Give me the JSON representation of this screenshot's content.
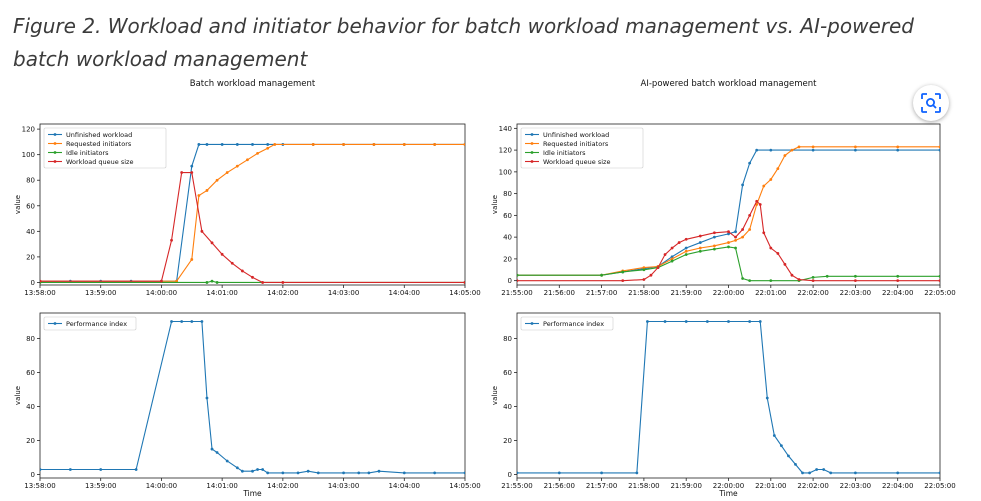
{
  "figure": {
    "title": "Figure 2. Workload and initiator behavior for batch workload management vs. AI-powered batch workload management"
  },
  "overlay": {
    "scan_icon": "visual-search-icon"
  },
  "chart_data": [
    {
      "type": "line",
      "title": "Batch workload management",
      "ylabel": "value",
      "xlabel": "",
      "ylim": [
        -2,
        124
      ],
      "yticks": [
        0,
        20,
        40,
        60,
        80,
        100,
        120
      ],
      "x": [
        "13:58:00",
        "13:58:05",
        "13:58:10",
        "13:58:15",
        "13:58:20",
        "13:58:25",
        "13:58:30",
        "13:58:35",
        "13:58:40",
        "13:58:45",
        "13:58:50",
        "13:58:55",
        "13:59:00",
        "13:59:05",
        "13:59:10",
        "13:59:15",
        "13:59:20",
        "13:59:25",
        "13:59:30",
        "13:59:35",
        "13:59:40",
        "13:59:45",
        "13:59:50",
        "13:59:55",
        "14:00:00",
        "14:00:05",
        "14:00:10",
        "14:00:15",
        "14:00:20",
        "14:00:25",
        "14:00:30",
        "14:00:35",
        "14:00:40",
        "14:00:45",
        "14:00:50",
        "14:00:55",
        "14:01:00",
        "14:01:05",
        "14:01:10",
        "14:01:15",
        "14:01:20",
        "14:01:25",
        "14:01:30",
        "14:01:35",
        "14:01:40",
        "14:01:45",
        "14:01:50",
        "14:01:55",
        "14:02:00",
        "14:02:05",
        "14:02:10",
        "14:02:15",
        "14:02:20",
        "14:02:25",
        "14:02:30",
        "14:02:35",
        "14:02:40",
        "14:02:45",
        "14:02:50",
        "14:02:55",
        "14:03:00",
        "14:03:05",
        "14:03:10",
        "14:03:15",
        "14:03:20",
        "14:03:25",
        "14:03:30",
        "14:03:35",
        "14:03:40",
        "14:03:45",
        "14:03:50",
        "14:03:55",
        "14:04:00",
        "14:04:05",
        "14:04:10",
        "14:04:15",
        "14:04:20",
        "14:04:25",
        "14:04:30",
        "14:04:35",
        "14:04:40",
        "14:04:45",
        "14:04:50",
        "14:04:55",
        "14:05:00"
      ],
      "xticks": [
        "13:58:00",
        "13:59:00",
        "14:00:00",
        "14:01:00",
        "14:02:00",
        "14:03:00",
        "14:04:00",
        "14:05:00"
      ],
      "series": [
        {
          "name": "Unfinished workload",
          "color": "#1f77b4",
          "points": [
            [
              "13:58:00",
              1
            ],
            [
              "13:58:30",
              1
            ],
            [
              "13:59:00",
              1
            ],
            [
              "13:59:30",
              1
            ],
            [
              "14:00:00",
              1
            ],
            [
              "14:00:15",
              1
            ],
            [
              "14:00:30",
              91
            ],
            [
              "14:00:37",
              108
            ],
            [
              "14:00:45",
              108
            ],
            [
              "14:01:00",
              108
            ],
            [
              "14:01:15",
              108
            ],
            [
              "14:01:30",
              108
            ],
            [
              "14:01:45",
              108
            ],
            [
              "14:02:00",
              108
            ],
            [
              "14:02:30",
              108
            ],
            [
              "14:03:00",
              108
            ],
            [
              "14:03:30",
              108
            ],
            [
              "14:04:00",
              108
            ],
            [
              "14:04:30",
              108
            ],
            [
              "14:05:00",
              108
            ]
          ]
        },
        {
          "name": "Requested initiators",
          "color": "#ff7f0e",
          "points": [
            [
              "13:58:00",
              1
            ],
            [
              "14:00:15",
              1
            ],
            [
              "14:00:30",
              18
            ],
            [
              "14:00:37",
              68
            ],
            [
              "14:00:45",
              72
            ],
            [
              "14:00:55",
              80
            ],
            [
              "14:01:05",
              86
            ],
            [
              "14:01:15",
              91
            ],
            [
              "14:01:25",
              96
            ],
            [
              "14:01:35",
              101
            ],
            [
              "14:01:45",
              105
            ],
            [
              "14:01:52",
              108
            ],
            [
              "14:02:30",
              108
            ],
            [
              "14:03:00",
              108
            ],
            [
              "14:03:30",
              108
            ],
            [
              "14:04:00",
              108
            ],
            [
              "14:04:30",
              108
            ],
            [
              "14:05:00",
              108
            ]
          ]
        },
        {
          "name": "Idle initiators",
          "color": "#2ca02c",
          "points": [
            [
              "13:58:00",
              0
            ],
            [
              "14:00:45",
              0
            ],
            [
              "14:00:50",
              1
            ],
            [
              "14:00:55",
              0
            ],
            [
              "14:05:00",
              0
            ]
          ]
        },
        {
          "name": "Workload queue size",
          "color": "#d62728",
          "points": [
            [
              "13:58:00",
              1
            ],
            [
              "14:00:00",
              1
            ],
            [
              "14:00:10",
              33
            ],
            [
              "14:00:20",
              86
            ],
            [
              "14:00:30",
              86
            ],
            [
              "14:00:40",
              40
            ],
            [
              "14:00:50",
              31
            ],
            [
              "14:01:00",
              22
            ],
            [
              "14:01:10",
              15
            ],
            [
              "14:01:20",
              9
            ],
            [
              "14:01:30",
              4
            ],
            [
              "14:01:40",
              0
            ],
            [
              "14:02:00",
              0
            ],
            [
              "14:05:00",
              0
            ]
          ]
        }
      ]
    },
    {
      "type": "line",
      "title": "",
      "ylabel": "value",
      "xlabel": "Time",
      "ylim": [
        -2,
        95
      ],
      "yticks": [
        0,
        20,
        40,
        60,
        80
      ],
      "xticks": [
        "13:58:00",
        "13:59:00",
        "14:00:00",
        "14:01:00",
        "14:02:00",
        "14:03:00",
        "14:04:00",
        "14:05:00"
      ],
      "series": [
        {
          "name": "Performance index",
          "color": "#1f77b4",
          "points": [
            [
              "13:58:00",
              3
            ],
            [
              "13:58:30",
              3
            ],
            [
              "13:59:00",
              3
            ],
            [
              "13:59:35",
              3
            ],
            [
              "14:00:10",
              90
            ],
            [
              "14:00:20",
              90
            ],
            [
              "14:00:30",
              90
            ],
            [
              "14:00:40",
              90
            ],
            [
              "14:00:45",
              45
            ],
            [
              "14:00:50",
              15
            ],
            [
              "14:00:55",
              13
            ],
            [
              "14:01:05",
              8
            ],
            [
              "14:01:15",
              4
            ],
            [
              "14:01:20",
              2
            ],
            [
              "14:01:30",
              2
            ],
            [
              "14:01:35",
              3
            ],
            [
              "14:01:40",
              3
            ],
            [
              "14:01:45",
              1
            ],
            [
              "14:02:00",
              1
            ],
            [
              "14:02:15",
              1
            ],
            [
              "14:02:25",
              2
            ],
            [
              "14:02:35",
              1
            ],
            [
              "14:03:00",
              1
            ],
            [
              "14:03:15",
              1
            ],
            [
              "14:03:25",
              1
            ],
            [
              "14:03:35",
              2
            ],
            [
              "14:04:00",
              1
            ],
            [
              "14:04:30",
              1
            ],
            [
              "14:05:00",
              1
            ]
          ]
        }
      ]
    },
    {
      "type": "line",
      "title": "AI-powered batch workload management",
      "ylabel": "value",
      "xlabel": "",
      "ylim": [
        -4,
        144
      ],
      "yticks": [
        0,
        20,
        40,
        60,
        80,
        100,
        120,
        140
      ],
      "xticks": [
        "21:55:00",
        "21:56:00",
        "21:57:00",
        "21:58:00",
        "21:59:00",
        "22:00:00",
        "22:01:00",
        "22:02:00",
        "22:03:00",
        "22:04:00",
        "22:05:00"
      ],
      "series": [
        {
          "name": "Unfinished workload",
          "color": "#1f77b4",
          "points": [
            [
              "21:55:00",
              5
            ],
            [
              "21:57:00",
              5
            ],
            [
              "21:57:30",
              8
            ],
            [
              "21:58:00",
              11
            ],
            [
              "21:58:20",
              13
            ],
            [
              "21:58:40",
              22
            ],
            [
              "21:59:00",
              30
            ],
            [
              "21:59:20",
              35
            ],
            [
              "21:59:40",
              40
            ],
            [
              "22:00:00",
              43
            ],
            [
              "22:00:10",
              45
            ],
            [
              "22:00:20",
              88
            ],
            [
              "22:00:30",
              108
            ],
            [
              "22:00:40",
              120
            ],
            [
              "22:01:00",
              120
            ],
            [
              "22:02:00",
              120
            ],
            [
              "22:03:00",
              120
            ],
            [
              "22:04:00",
              120
            ],
            [
              "22:05:00",
              120
            ]
          ]
        },
        {
          "name": "Requested initiators",
          "color": "#ff7f0e",
          "points": [
            [
              "21:55:00",
              5
            ],
            [
              "21:57:00",
              5
            ],
            [
              "21:57:30",
              9
            ],
            [
              "21:58:00",
              12
            ],
            [
              "21:58:20",
              13
            ],
            [
              "21:58:40",
              20
            ],
            [
              "21:59:00",
              27
            ],
            [
              "21:59:20",
              30
            ],
            [
              "21:59:40",
              32
            ],
            [
              "22:00:00",
              35
            ],
            [
              "22:00:10",
              37
            ],
            [
              "22:00:20",
              40
            ],
            [
              "22:00:30",
              47
            ],
            [
              "22:00:40",
              70
            ],
            [
              "22:00:50",
              87
            ],
            [
              "22:01:00",
              93
            ],
            [
              "22:01:10",
              103
            ],
            [
              "22:01:20",
              115
            ],
            [
              "22:01:30",
              120
            ],
            [
              "22:01:40",
              123
            ],
            [
              "22:02:00",
              123
            ],
            [
              "22:03:00",
              123
            ],
            [
              "22:04:00",
              123
            ],
            [
              "22:05:00",
              123
            ]
          ]
        },
        {
          "name": "Idle initiators",
          "color": "#2ca02c",
          "points": [
            [
              "21:55:00",
              5
            ],
            [
              "21:57:00",
              5
            ],
            [
              "21:57:30",
              8
            ],
            [
              "21:58:00",
              10
            ],
            [
              "21:58:20",
              12
            ],
            [
              "21:58:40",
              18
            ],
            [
              "21:59:00",
              24
            ],
            [
              "21:59:20",
              27
            ],
            [
              "21:59:40",
              29
            ],
            [
              "22:00:00",
              31
            ],
            [
              "22:00:10",
              30
            ],
            [
              "22:00:20",
              2
            ],
            [
              "22:00:30",
              0
            ],
            [
              "22:01:00",
              0
            ],
            [
              "22:01:40",
              0
            ],
            [
              "22:02:00",
              3
            ],
            [
              "22:02:20",
              4
            ],
            [
              "22:03:00",
              4
            ],
            [
              "22:04:00",
              4
            ],
            [
              "22:05:00",
              4
            ]
          ]
        },
        {
          "name": "Workload queue size",
          "color": "#d62728",
          "points": [
            [
              "21:55:00",
              0
            ],
            [
              "21:57:30",
              0
            ],
            [
              "21:58:00",
              1
            ],
            [
              "21:58:10",
              5
            ],
            [
              "21:58:20",
              12
            ],
            [
              "21:58:30",
              24
            ],
            [
              "21:58:40",
              30
            ],
            [
              "21:58:50",
              35
            ],
            [
              "21:59:00",
              38
            ],
            [
              "21:59:20",
              41
            ],
            [
              "21:59:40",
              44
            ],
            [
              "22:00:00",
              45
            ],
            [
              "22:00:10",
              40
            ],
            [
              "22:00:20",
              47
            ],
            [
              "22:00:30",
              60
            ],
            [
              "22:00:40",
              73
            ],
            [
              "22:00:45",
              70
            ],
            [
              "22:00:50",
              44
            ],
            [
              "22:01:00",
              30
            ],
            [
              "22:01:10",
              25
            ],
            [
              "22:01:20",
              15
            ],
            [
              "22:01:30",
              5
            ],
            [
              "22:01:40",
              1
            ],
            [
              "22:02:00",
              0
            ],
            [
              "22:03:00",
              0
            ],
            [
              "22:04:00",
              0
            ],
            [
              "22:05:00",
              0
            ]
          ]
        }
      ]
    },
    {
      "type": "line",
      "title": "",
      "ylabel": "value",
      "xlabel": "Time",
      "ylim": [
        -2,
        95
      ],
      "yticks": [
        0,
        20,
        40,
        60,
        80
      ],
      "xticks": [
        "21:55:00",
        "21:56:00",
        "21:57:00",
        "21:58:00",
        "21:59:00",
        "22:00:00",
        "22:01:00",
        "22:02:00",
        "22:03:00",
        "22:04:00",
        "22:05:00"
      ],
      "series": [
        {
          "name": "Performance index",
          "color": "#1f77b4",
          "points": [
            [
              "21:55:00",
              1
            ],
            [
              "21:56:00",
              1
            ],
            [
              "21:57:00",
              1
            ],
            [
              "21:57:50",
              1
            ],
            [
              "21:58:05",
              90
            ],
            [
              "21:58:30",
              90
            ],
            [
              "21:59:00",
              90
            ],
            [
              "21:59:30",
              90
            ],
            [
              "22:00:00",
              90
            ],
            [
              "22:00:30",
              90
            ],
            [
              "22:00:45",
              90
            ],
            [
              "22:00:55",
              45
            ],
            [
              "22:01:05",
              23
            ],
            [
              "22:01:15",
              17
            ],
            [
              "22:01:25",
              11
            ],
            [
              "22:01:35",
              6
            ],
            [
              "22:01:45",
              1
            ],
            [
              "22:01:55",
              1
            ],
            [
              "22:02:05",
              3
            ],
            [
              "22:02:15",
              3
            ],
            [
              "22:02:25",
              1
            ],
            [
              "22:03:00",
              1
            ],
            [
              "22:04:00",
              1
            ],
            [
              "22:05:00",
              1
            ]
          ]
        }
      ]
    }
  ]
}
